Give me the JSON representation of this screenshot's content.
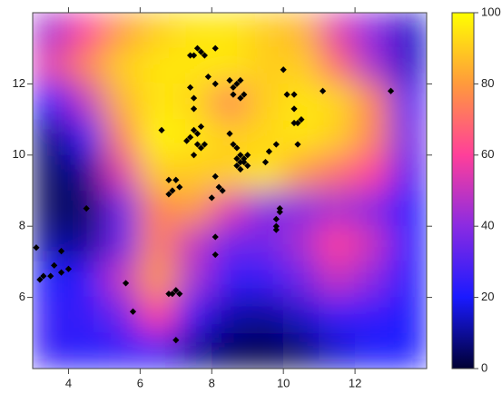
{
  "chart_data": {
    "type": "heatmap",
    "xlim": [
      3,
      14
    ],
    "ylim": [
      4,
      14
    ],
    "xticks": [
      4,
      6,
      8,
      10,
      12
    ],
    "yticks": [
      6,
      8,
      10,
      12
    ],
    "z_x": [
      3.5,
      4.5,
      5.5,
      6.5,
      7.5,
      8.5,
      9.5,
      10.5,
      11.5,
      12.5,
      13.5
    ],
    "z_y": [
      13.5,
      12.5,
      11.5,
      10.5,
      9.5,
      8.5,
      7.5,
      6.5,
      5.5,
      4.5
    ],
    "z": [
      [
        45,
        60,
        80,
        90,
        95,
        95,
        90,
        85,
        55,
        40,
        15
      ],
      [
        55,
        75,
        90,
        95,
        95,
        95,
        90,
        90,
        70,
        45,
        15
      ],
      [
        20,
        50,
        85,
        95,
        92,
        75,
        90,
        95,
        92,
        75,
        30
      ],
      [
        8,
        25,
        75,
        98,
        95,
        90,
        92,
        95,
        90,
        75,
        35
      ],
      [
        5,
        10,
        55,
        90,
        90,
        90,
        95,
        80,
        70,
        60,
        30
      ],
      [
        5,
        5,
        35,
        75,
        80,
        55,
        40,
        40,
        45,
        40,
        20
      ],
      [
        10,
        10,
        35,
        75,
        50,
        35,
        35,
        45,
        60,
        50,
        20
      ],
      [
        20,
        25,
        50,
        80,
        45,
        25,
        25,
        35,
        50,
        40,
        20
      ],
      [
        25,
        25,
        35,
        60,
        25,
        12,
        10,
        15,
        25,
        25,
        20
      ],
      [
        25,
        22,
        25,
        25,
        10,
        3,
        2,
        5,
        15,
        20,
        20
      ]
    ],
    "colorscale": [
      "#000033",
      "#1a1aff",
      "#8a2be2",
      "#ff3f9a",
      "#ff9a3c",
      "#ffff00"
    ],
    "clim": [
      0,
      100
    ],
    "cticks": [
      0,
      20,
      40,
      60,
      80,
      100
    ],
    "points": {
      "color": "#000000",
      "x": [
        3.1,
        3.2,
        3.3,
        3.5,
        3.6,
        3.8,
        3.8,
        4.0,
        4.5,
        5.6,
        5.8,
        6.8,
        6.9,
        7.0,
        7.1,
        7.0,
        6.6,
        6.8,
        6.8,
        7.0,
        7.1,
        6.9,
        7.3,
        7.4,
        7.5,
        7.5,
        7.6,
        7.7,
        7.8,
        7.6,
        7.7,
        7.4,
        7.5,
        7.6,
        7.7,
        7.8,
        8.1,
        7.9,
        8.1,
        7.4,
        7.5,
        7.5,
        8.0,
        8.1,
        8.2,
        8.3,
        8.1,
        8.1,
        8.5,
        8.6,
        8.6,
        8.7,
        8.8,
        8.9,
        8.8,
        8.5,
        8.6,
        8.7,
        8.8,
        8.8,
        8.7,
        8.8,
        8.9,
        8.9,
        9.0,
        9.0,
        8.7,
        9.5,
        9.6,
        9.8,
        9.8,
        9.8,
        9.9,
        9.9,
        9.8,
        10.0,
        10.1,
        10.3,
        10.3,
        10.3,
        10.4,
        10.5,
        10.4,
        11.1,
        13.0
      ],
      "y": [
        7.4,
        6.5,
        6.6,
        6.6,
        6.9,
        7.3,
        6.7,
        6.8,
        8.5,
        6.4,
        5.6,
        6.1,
        6.1,
        6.2,
        6.1,
        4.8,
        10.7,
        9.3,
        8.9,
        9.3,
        9.1,
        9.0,
        10.4,
        10.5,
        10.7,
        10.0,
        10.3,
        10.2,
        10.3,
        10.6,
        10.8,
        12.8,
        12.8,
        13.0,
        12.9,
        12.8,
        13.0,
        12.2,
        12.0,
        11.9,
        11.6,
        11.3,
        8.8,
        9.4,
        9.1,
        9.0,
        7.7,
        7.2,
        12.1,
        11.9,
        11.7,
        12.0,
        12.1,
        11.7,
        11.6,
        10.6,
        10.3,
        10.2,
        10.0,
        9.8,
        9.7,
        9.6,
        9.8,
        9.9,
        10.0,
        9.7,
        9.9,
        9.8,
        10.1,
        10.3,
        8.0,
        8.2,
        8.4,
        8.5,
        7.9,
        12.4,
        11.7,
        11.7,
        11.3,
        10.9,
        10.9,
        11.0,
        10.3,
        11.8,
        11.8
      ]
    }
  }
}
